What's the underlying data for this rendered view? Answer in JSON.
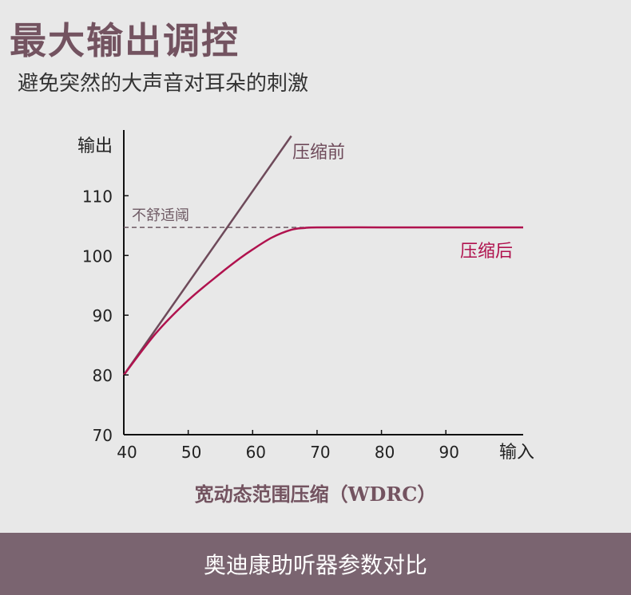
{
  "header": {
    "title": "最大输出调控",
    "subtitle": "避免突然的大声音对耳朵的刺激"
  },
  "colors": {
    "title": "#735360",
    "before_line": "#6e4a5a",
    "after_line": "#b0124e",
    "threshold_line": "#6e5a64",
    "footer_bg": "#7a6470"
  },
  "chart_data": {
    "type": "line",
    "xlabel": "输入",
    "ylabel": "输出",
    "x_ticks": [
      40,
      50,
      60,
      70,
      80,
      90
    ],
    "y_ticks": [
      70,
      80,
      90,
      100,
      110
    ],
    "xlim": [
      40,
      102
    ],
    "ylim": [
      70,
      121
    ],
    "series": [
      {
        "name": "压缩前",
        "x": [
          40,
          66
        ],
        "y": [
          80,
          120
        ]
      },
      {
        "name": "压缩后",
        "x": [
          40,
          45,
          50,
          55,
          58,
          60,
          63,
          66,
          68,
          70,
          80,
          90,
          102
        ],
        "y": [
          80,
          87,
          92.5,
          97,
          99.5,
          101,
          103,
          104.3,
          104.6,
          104.7,
          104.7,
          104.7,
          104.7
        ]
      }
    ],
    "threshold": {
      "label": "不舒适阈",
      "y": 104.7
    },
    "caption": "宽动态范围压缩（WDRC）"
  },
  "footer": {
    "text": "奥迪康助听器参数对比"
  }
}
